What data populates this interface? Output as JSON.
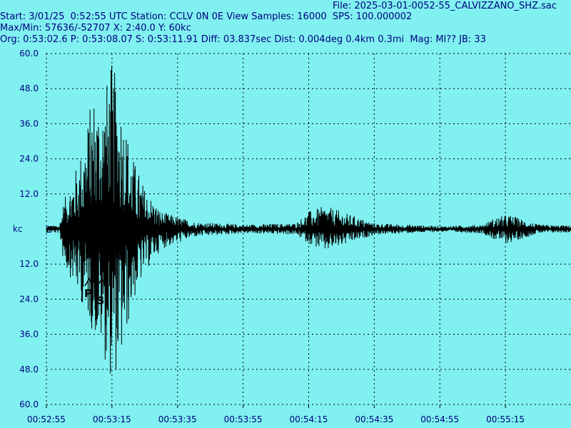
{
  "header": {
    "file": "File: 2025-03-01-0052-55_CALVIZZANO_SHZ.sac",
    "start": "Start: 3/01/25  0:52:55 UTC Station: CCLV 0N 0E View Samples: 16000  SPS: 100.000002",
    "maxmin": "Max/Min: 57636/-52707 X: 2:40.0 Y: 60kc",
    "org": "Org: 0:53:02.6 P: 0:53:08.07 S: 0:53:11.91 Diff: 03.837sec Dist: 0.004deg 0.4km 0.3mi  Mag: Ml?? JB: 33"
  },
  "colors": {
    "background": "#80f0f0",
    "trace": "#000000",
    "text": "#000080",
    "grid": "#000000"
  },
  "chart_data": {
    "type": "line",
    "title": "",
    "channel_units": "kc",
    "channel": "Z",
    "y_tick_labels": [
      "60.0",
      "48.0",
      "36.0",
      "24.0",
      "12.0",
      "kc",
      "12.0",
      "24.0",
      "36.0",
      "48.0",
      "60.0"
    ],
    "y_tick_values": [
      60,
      48,
      36,
      24,
      12,
      0,
      -12,
      -24,
      -36,
      -48,
      -60
    ],
    "ylim": [
      -60,
      60
    ],
    "x_tick_labels": [
      "00:52:55",
      "00:53:15",
      "00:53:35",
      "00:53:55",
      "00:54:15",
      "00:54:35",
      "00:54:55",
      "00:55:15"
    ],
    "x_tick_seconds": [
      0,
      20,
      40,
      60,
      80,
      100,
      120,
      140
    ],
    "xlim_seconds": [
      0,
      160
    ],
    "grid": true,
    "picks": [
      {
        "label": "P",
        "time_s": 13.07
      },
      {
        "label": "S",
        "time_s": 16.91
      }
    ],
    "envelope": [
      {
        "t": 0,
        "pos": 1.0,
        "neg": 1.0
      },
      {
        "t": 4,
        "pos": 1.5,
        "neg": 1.5
      },
      {
        "t": 5,
        "pos": 8,
        "neg": 10
      },
      {
        "t": 6,
        "pos": 12,
        "neg": 14
      },
      {
        "t": 8,
        "pos": 18,
        "neg": 18
      },
      {
        "t": 10,
        "pos": 24,
        "neg": 24
      },
      {
        "t": 12,
        "pos": 34,
        "neg": 28
      },
      {
        "t": 13,
        "pos": 40,
        "neg": 32
      },
      {
        "t": 14,
        "pos": 48,
        "neg": 35
      },
      {
        "t": 17,
        "pos": 45,
        "neg": 42
      },
      {
        "t": 20,
        "pos": 57.6,
        "neg": 52.7
      },
      {
        "t": 23,
        "pos": 44,
        "neg": 45
      },
      {
        "t": 26,
        "pos": 26,
        "neg": 27
      },
      {
        "t": 30,
        "pos": 14,
        "neg": 15
      },
      {
        "t": 35,
        "pos": 6,
        "neg": 7
      },
      {
        "t": 45,
        "pos": 2.5,
        "neg": 2.8
      },
      {
        "t": 60,
        "pos": 1.5,
        "neg": 1.5
      },
      {
        "t": 76,
        "pos": 2,
        "neg": 2
      },
      {
        "t": 80,
        "pos": 6,
        "neg": 5
      },
      {
        "t": 85,
        "pos": 8,
        "neg": 8
      },
      {
        "t": 90,
        "pos": 6,
        "neg": 6
      },
      {
        "t": 95,
        "pos": 4,
        "neg": 4
      },
      {
        "t": 100,
        "pos": 2,
        "neg": 2
      },
      {
        "t": 120,
        "pos": 1.0,
        "neg": 1.0
      },
      {
        "t": 133,
        "pos": 1.5,
        "neg": 1.5
      },
      {
        "t": 137,
        "pos": 4,
        "neg": 4
      },
      {
        "t": 141,
        "pos": 5,
        "neg": 5
      },
      {
        "t": 146,
        "pos": 3,
        "neg": 3
      },
      {
        "t": 150,
        "pos": 1.5,
        "neg": 1.5
      },
      {
        "t": 160,
        "pos": 1.2,
        "neg": 1.2
      }
    ]
  }
}
